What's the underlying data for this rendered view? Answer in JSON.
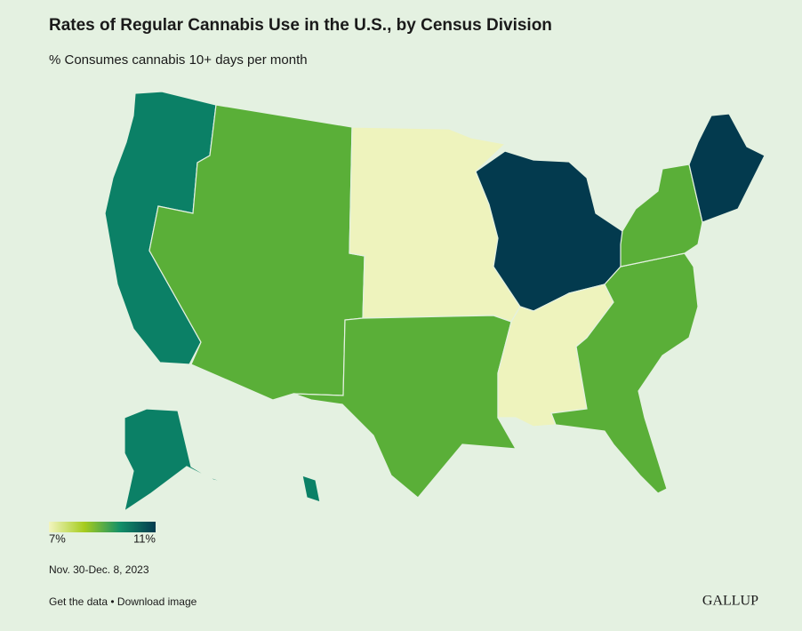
{
  "title": "Rates of Regular Cannabis Use in the U.S., by Census Division",
  "subtitle": "% Consumes cannabis 10+ days per month",
  "legend": {
    "min": {
      "value": 7,
      "label": "7%"
    },
    "max": {
      "value": 11,
      "label": "11%"
    },
    "colors": [
      "#f2f5c0",
      "#a6cc1f",
      "#139068",
      "#033a4e"
    ]
  },
  "regions": [
    {
      "color": "#0b8066"
    },
    {
      "color": "#5aaf38"
    },
    {
      "color": "#eef3bd"
    },
    {
      "color": "#5aaf38"
    },
    {
      "color": "#033a4e"
    },
    {
      "color": "#eef3bd"
    },
    {
      "color": "#5aaf38"
    },
    {
      "color": "#5aaf38"
    },
    {
      "color": "#033a4e"
    },
    {
      "color": "#0b8066"
    },
    {
      "color": "#0b8066"
    }
  ],
  "date": "Nov. 30-Dec. 8, 2023",
  "footer": "Get the data • Download image",
  "brand": "GALLUP"
}
